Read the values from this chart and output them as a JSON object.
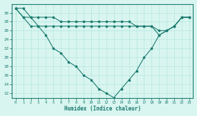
{
  "x": [
    0,
    1,
    2,
    3,
    4,
    5,
    6,
    7,
    8,
    9,
    10,
    11,
    12,
    13,
    14,
    15,
    16,
    17,
    18,
    19,
    20,
    21,
    22,
    23
  ],
  "s1": [
    31,
    31,
    29,
    27,
    25,
    22,
    21,
    19,
    18,
    16,
    15,
    13,
    12,
    11,
    13,
    15,
    17,
    20,
    22,
    25,
    26,
    27,
    29,
    29
  ],
  "s2": [
    31,
    29,
    27,
    27,
    27,
    27,
    27,
    27,
    27,
    27,
    27,
    27,
    27,
    27,
    27,
    27,
    27,
    27,
    27,
    25,
    26,
    27,
    29,
    29
  ],
  "s3": [
    31,
    29,
    29,
    29,
    29,
    29,
    28,
    28,
    28,
    28,
    28,
    28,
    28,
    28,
    28,
    28,
    27,
    27,
    27,
    26,
    26,
    27,
    29,
    29
  ],
  "color": "#1a7a6e",
  "bg_color": "#d9f5f0",
  "grid_color": "#b8e8e0",
  "xlabel": "Humidex (Indice chaleur)",
  "ylim": [
    11,
    32
  ],
  "yticks": [
    12,
    14,
    16,
    18,
    20,
    22,
    24,
    26,
    28,
    30
  ],
  "xticks": [
    0,
    1,
    2,
    3,
    4,
    5,
    6,
    7,
    8,
    9,
    10,
    11,
    12,
    13,
    14,
    15,
    16,
    17,
    18,
    19,
    20,
    21,
    22,
    23
  ],
  "xtick_labels": [
    "0",
    "1",
    "2",
    "3",
    "4",
    "5",
    "6",
    "7",
    "8",
    "9",
    "10",
    "11",
    "12",
    "13",
    "14",
    "15",
    "16",
    "17",
    "18",
    "19",
    "20",
    "21",
    "22",
    "23"
  ]
}
